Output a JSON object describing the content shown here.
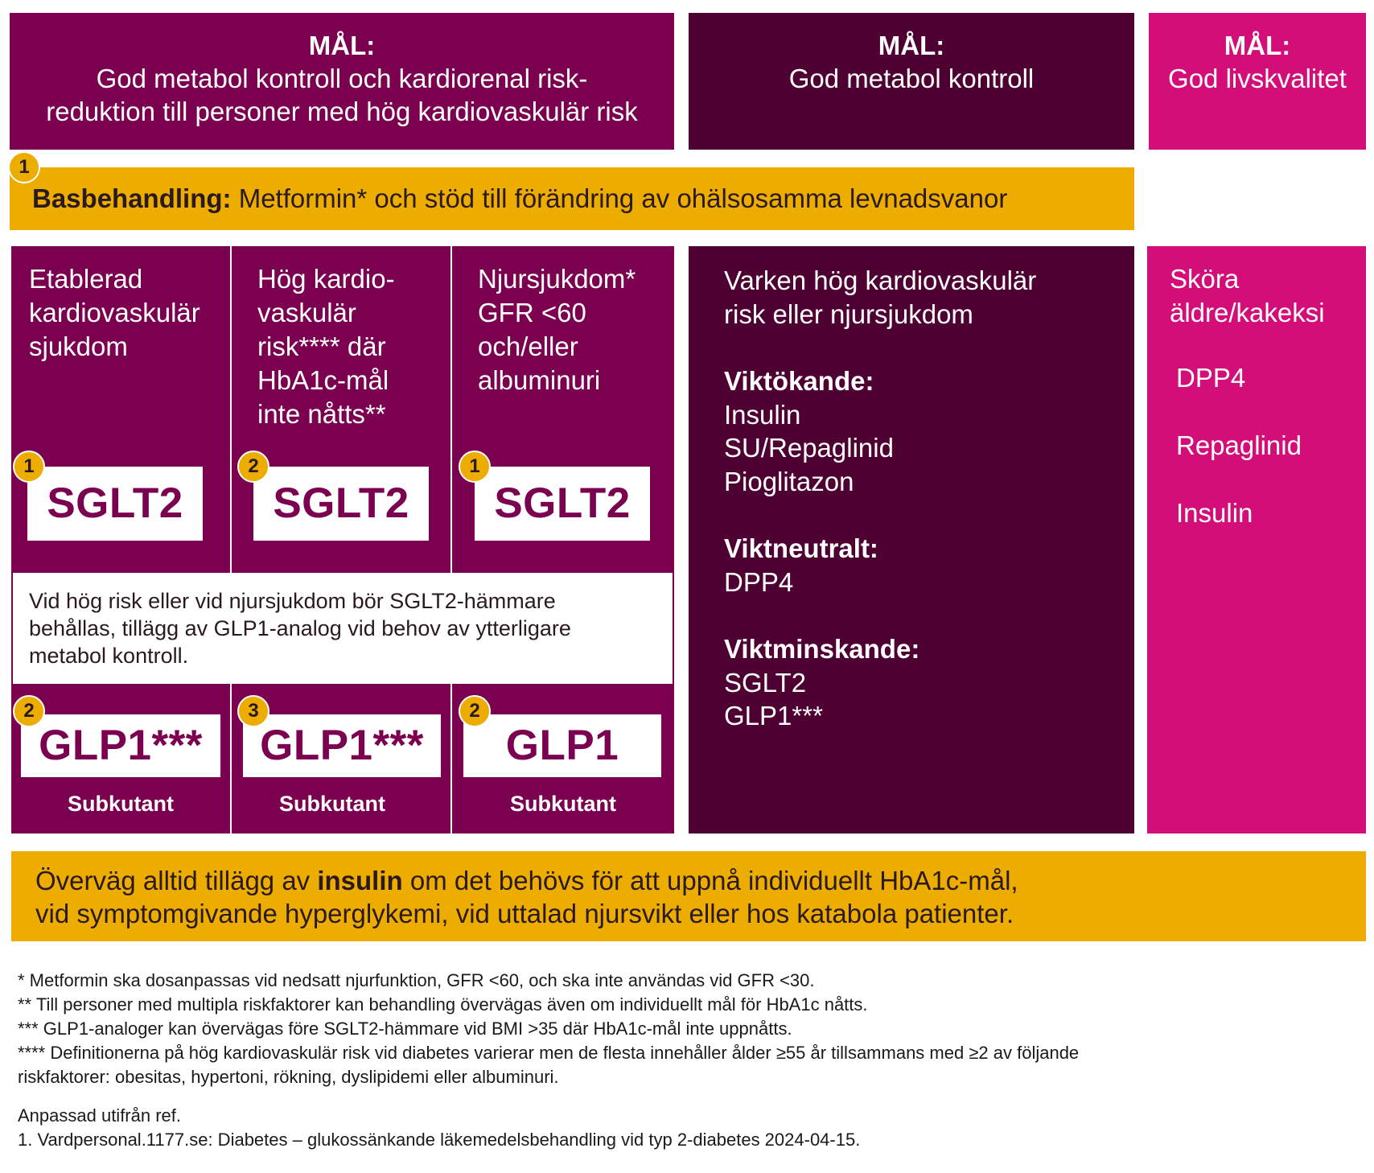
{
  "goals": [
    {
      "label": "MÅL:",
      "text_line1": "God metabol kontroll och kardiorenal risk-",
      "text_line2": "reduktion till personer med hög kardiovaskulär risk"
    },
    {
      "label": "MÅL:",
      "text": "God metabol kontroll"
    },
    {
      "label": "MÅL:",
      "text": "God livskvalitet"
    }
  ],
  "base": {
    "badge": "1",
    "bold": "Basbehandling:",
    "text": " Metformin* och stöd till förändring av ohälsosamma levnadsvanor"
  },
  "columns": [
    {
      "head": [
        "Etablerad",
        "kardiovaskulär",
        "sjukdom"
      ],
      "sglt_badge": "1",
      "sglt": "SGLT2",
      "glp_badge": "2",
      "glp": "GLP1***",
      "sub": "Subkutant"
    },
    {
      "head": [
        "Hög kardio-",
        "vaskulär",
        "risk**** där",
        "HbA1c-mål",
        "inte nåtts**"
      ],
      "sglt_badge": "2",
      "sglt": "SGLT2",
      "glp_badge": "3",
      "glp": "GLP1***",
      "sub": "Subkutant"
    },
    {
      "head": [
        "Njursjukdom*",
        "GFR <60",
        "och/eller",
        "albuminuri"
      ],
      "sglt_badge": "1",
      "sglt": "SGLT2",
      "glp_badge": "2",
      "glp": "GLP1",
      "sub": "Subkutant"
    }
  ],
  "note": [
    "Vid hög risk eller vid njursjukdom bör SGLT2-hämmare",
    "behållas, tillägg av GLP1-analog vid behov av ytterligare",
    "metabol kontroll."
  ],
  "middle": {
    "head": [
      "Varken hög kardiovaskulär",
      "risk eller njursjukdom"
    ],
    "groups": [
      {
        "title": "Viktökande:",
        "items": [
          "Insulin",
          "SU/Repaglinid",
          "Pioglitazon"
        ]
      },
      {
        "title": "Viktneutralt:",
        "items": [
          "DPP4"
        ]
      },
      {
        "title": "Viktminskande:",
        "items": [
          "SGLT2",
          "GLP1***"
        ]
      }
    ]
  },
  "right": {
    "head": [
      "Sköra",
      "äldre/kakeksi"
    ],
    "items": [
      "DPP4",
      "Repaglinid",
      "Insulin"
    ]
  },
  "insulin_box": {
    "pre": "Överväg alltid tillägg av ",
    "bold": "insulin",
    "post": " om det behövs för att uppnå individuellt HbA1c-mål,",
    "line2": "vid symptomgivande hyperglykemi, vid uttalad njursvikt eller hos katabola patienter."
  },
  "footnotes": [
    "* Metformin ska dosanpassas vid nedsatt njurfunktion, GFR <60, och ska inte användas vid GFR <30.",
    "** Till personer med multipla riskfaktorer kan behandling övervägas även om individuellt mål för HbA1c nåtts.",
    "*** GLP1-analoger kan övervägas före SGLT2-hämmare vid BMI >35 där HbA1c-mål inte uppnåtts.",
    "**** Definitionerna på hög kardiovaskulär risk vid diabetes varierar men de flesta innehåller ålder ≥55 år tillsammans med ≥2 av följande",
    "riskfaktorer: obesitas, hypertoni, rökning, dyslipidemi eller albuminuri."
  ],
  "reference": [
    "Anpassad utifrån ref.",
    "1. Vardpersonal.1177.se: Diabetes – glukossänkande läkemedelsbehandling vid typ 2-diabetes 2024-04-15."
  ],
  "colors": {
    "plum": "#7b004f",
    "dark_plum": "#4f0033",
    "magenta": "#d30e79",
    "amber": "#edac00"
  }
}
